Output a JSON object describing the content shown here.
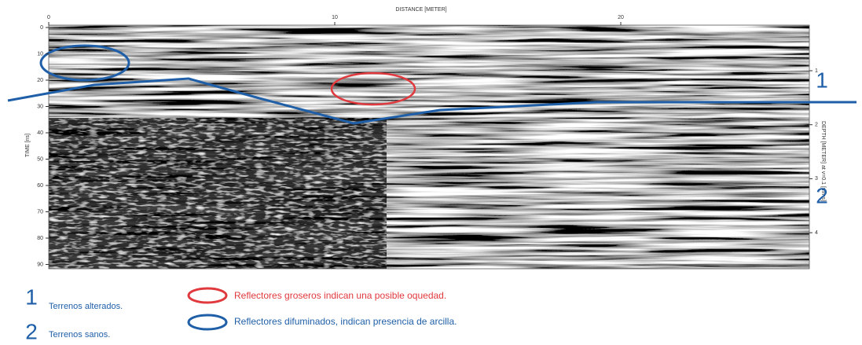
{
  "axes": {
    "distance": {
      "label": "DISTANCE [METER]",
      "ticks": [
        0,
        10,
        20
      ]
    },
    "time": {
      "label": "TIME [ns]",
      "ticks": [
        0,
        10,
        20,
        30,
        40,
        50,
        60,
        70,
        80,
        90
      ]
    },
    "depth": {
      "label": "DEPTH [METER] at v=0.1 [m/ns]",
      "ticks": [
        1,
        2,
        3,
        4
      ]
    }
  },
  "zones": [
    {
      "number": "1",
      "label": "Terrenos alterados."
    },
    {
      "number": "2",
      "label": "Terrenos sanos."
    }
  ],
  "markers": [
    {
      "label": "Reflectores groseros indican una posible oquedad."
    },
    {
      "label": "Reflectores difuminados, indican presencia de arcilla."
    }
  ]
}
